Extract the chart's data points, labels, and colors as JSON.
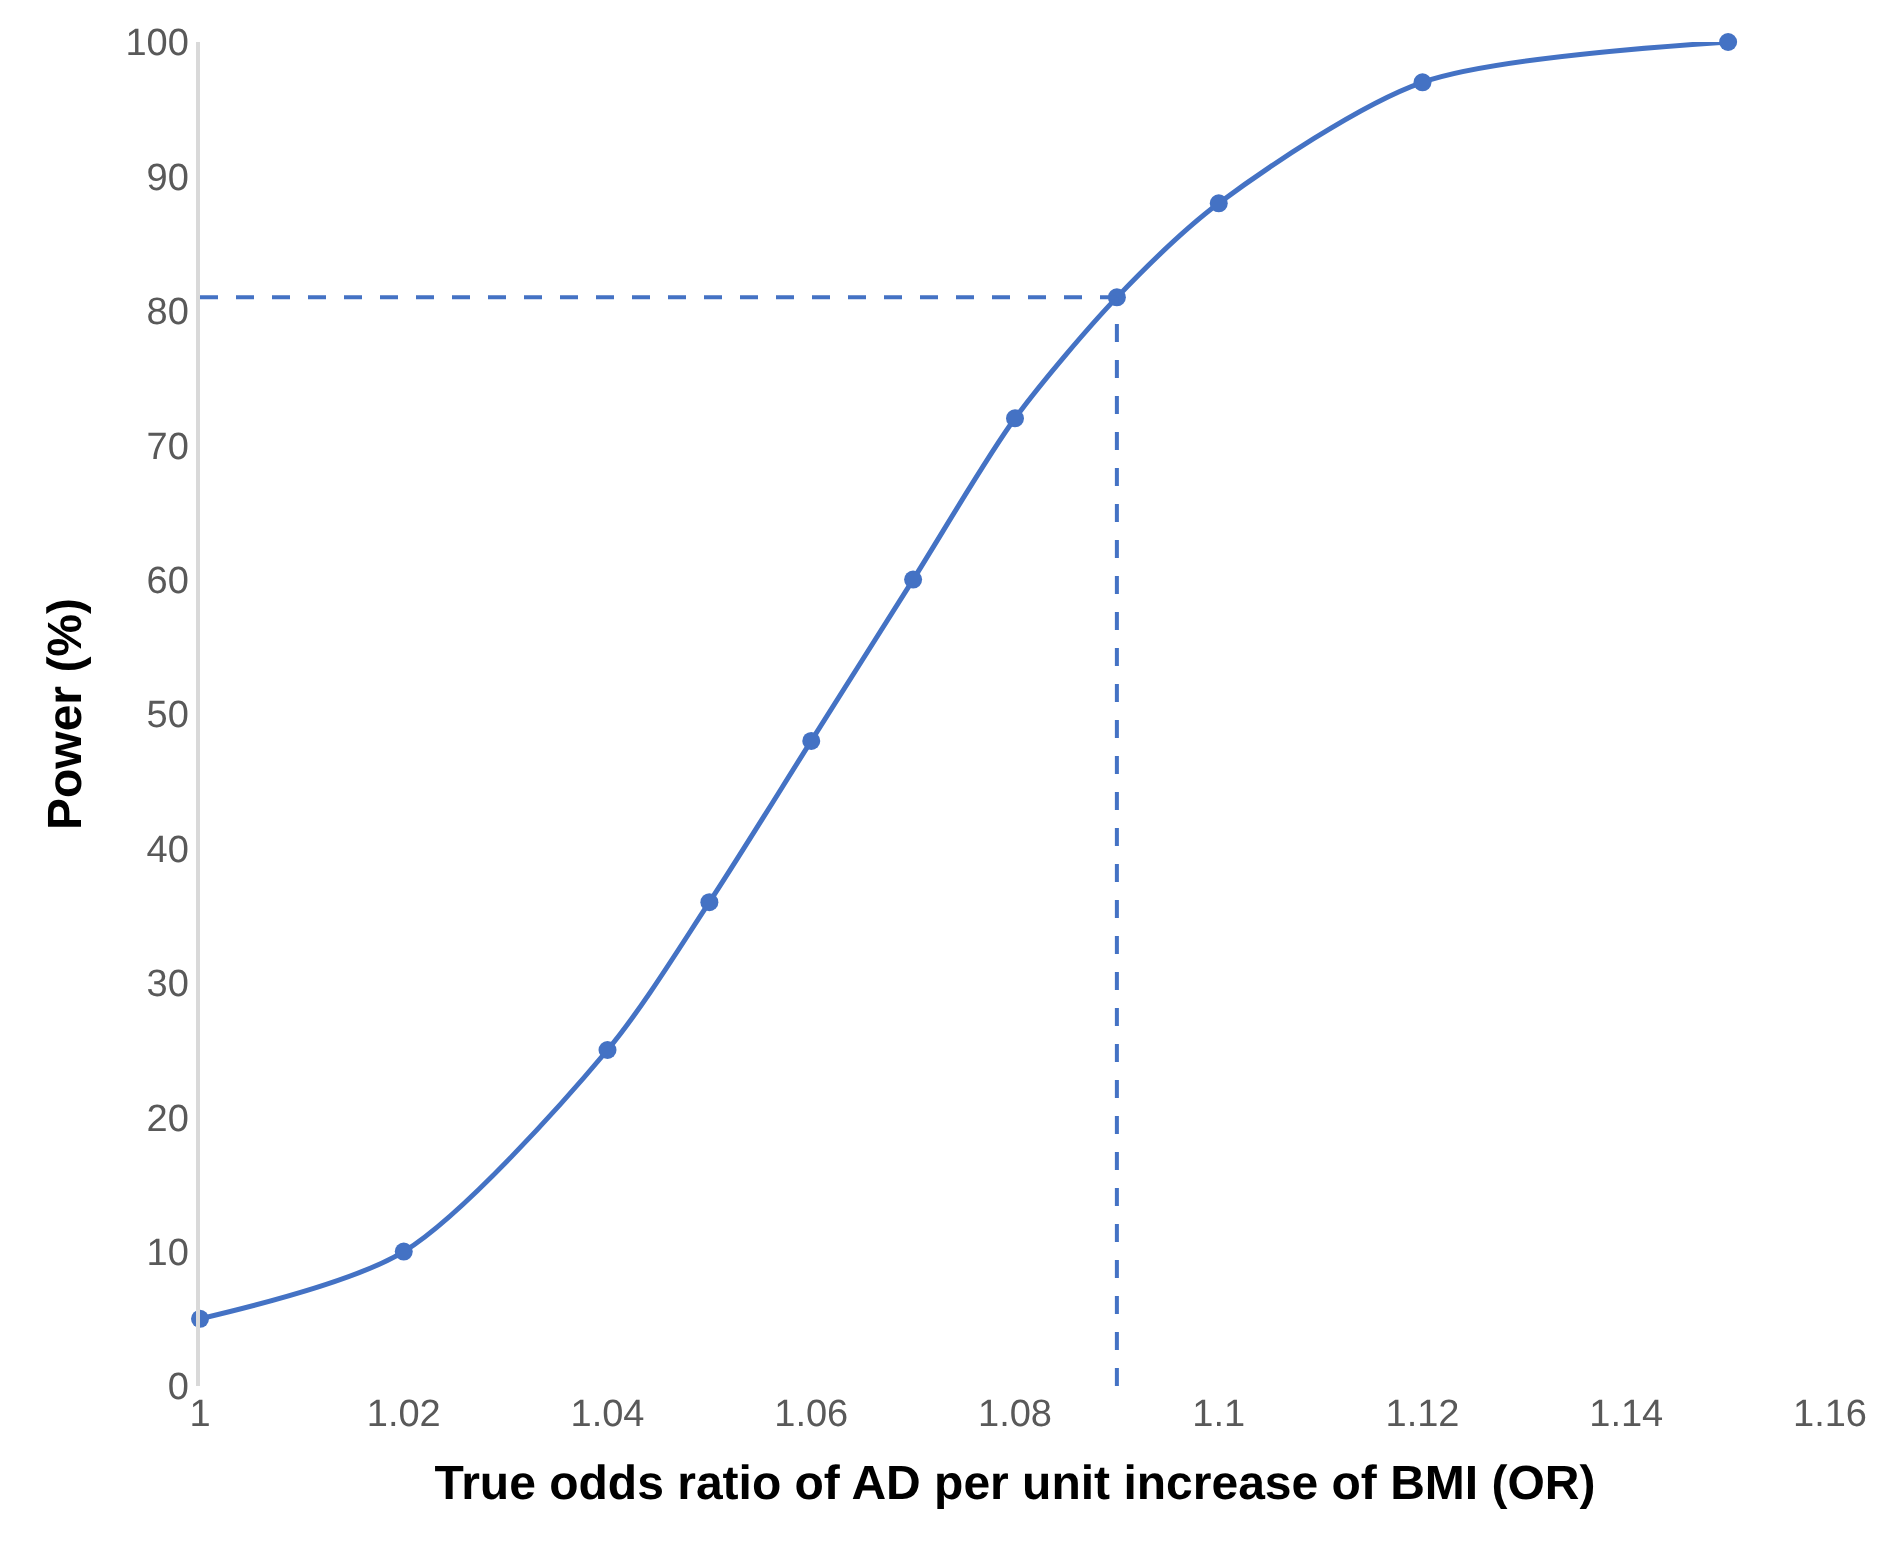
{
  "chart_data": {
    "type": "line",
    "xlabel": "True odds ratio of AD per unit increase of BMI (OR)",
    "ylabel": "Power (%)",
    "x": [
      1,
      1.02,
      1.04,
      1.05,
      1.06,
      1.07,
      1.08,
      1.09,
      1.1,
      1.12,
      1.15
    ],
    "series": [
      {
        "color": "#4472c4",
        "values": [
          5,
          10,
          25,
          36,
          48,
          60,
          72,
          81,
          88,
          97,
          100
        ]
      }
    ],
    "xlim": [
      1,
      1.16
    ],
    "xticks": [
      1,
      1.02,
      1.04,
      1.06,
      1.08,
      1.1,
      1.12,
      1.14,
      1.16
    ],
    "ylim": [
      0,
      100
    ],
    "yticks": [
      0,
      10,
      20,
      30,
      40,
      50,
      60,
      70,
      80,
      90,
      100
    ],
    "ref_lines": [
      {
        "axis": "y",
        "value": 81,
        "color": "#4472c4",
        "line_style": "dashed"
      },
      {
        "axis": "x",
        "value": 1.09,
        "color": "#4472c4",
        "line_style": "dashed"
      }
    ],
    "marker": "circle",
    "line_style": "solid",
    "legend": false
  }
}
